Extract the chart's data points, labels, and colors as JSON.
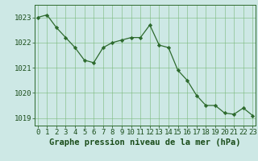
{
  "title": "Graphe pression niveau de la mer (hPa)",
  "x_values": [
    0,
    1,
    2,
    3,
    4,
    5,
    6,
    7,
    8,
    9,
    10,
    11,
    12,
    13,
    14,
    15,
    16,
    17,
    18,
    19,
    20,
    21,
    22,
    23
  ],
  "y_values": [
    1023.0,
    1023.1,
    1022.6,
    1022.2,
    1021.8,
    1021.3,
    1021.2,
    1021.8,
    1022.0,
    1022.1,
    1022.2,
    1022.2,
    1022.7,
    1021.9,
    1021.8,
    1020.9,
    1020.5,
    1019.9,
    1019.5,
    1019.5,
    1019.2,
    1019.15,
    1019.4,
    1019.1
  ],
  "ylim_min": 1018.7,
  "ylim_max": 1023.5,
  "yticks": [
    1019,
    1020,
    1021,
    1022,
    1023
  ],
  "xticks": [
    0,
    1,
    2,
    3,
    4,
    5,
    6,
    7,
    8,
    9,
    10,
    11,
    12,
    13,
    14,
    15,
    16,
    17,
    18,
    19,
    20,
    21,
    22,
    23
  ],
  "line_color": "#2d6a2d",
  "marker_color": "#2d6a2d",
  "bg_color": "#cde8e5",
  "plot_bg_color": "#cde8e5",
  "grid_color": "#7ab87a",
  "tick_label_color": "#1a4d1a",
  "title_color": "#1a4d1a",
  "tick_fontsize": 6.5,
  "title_fontsize": 7.5
}
